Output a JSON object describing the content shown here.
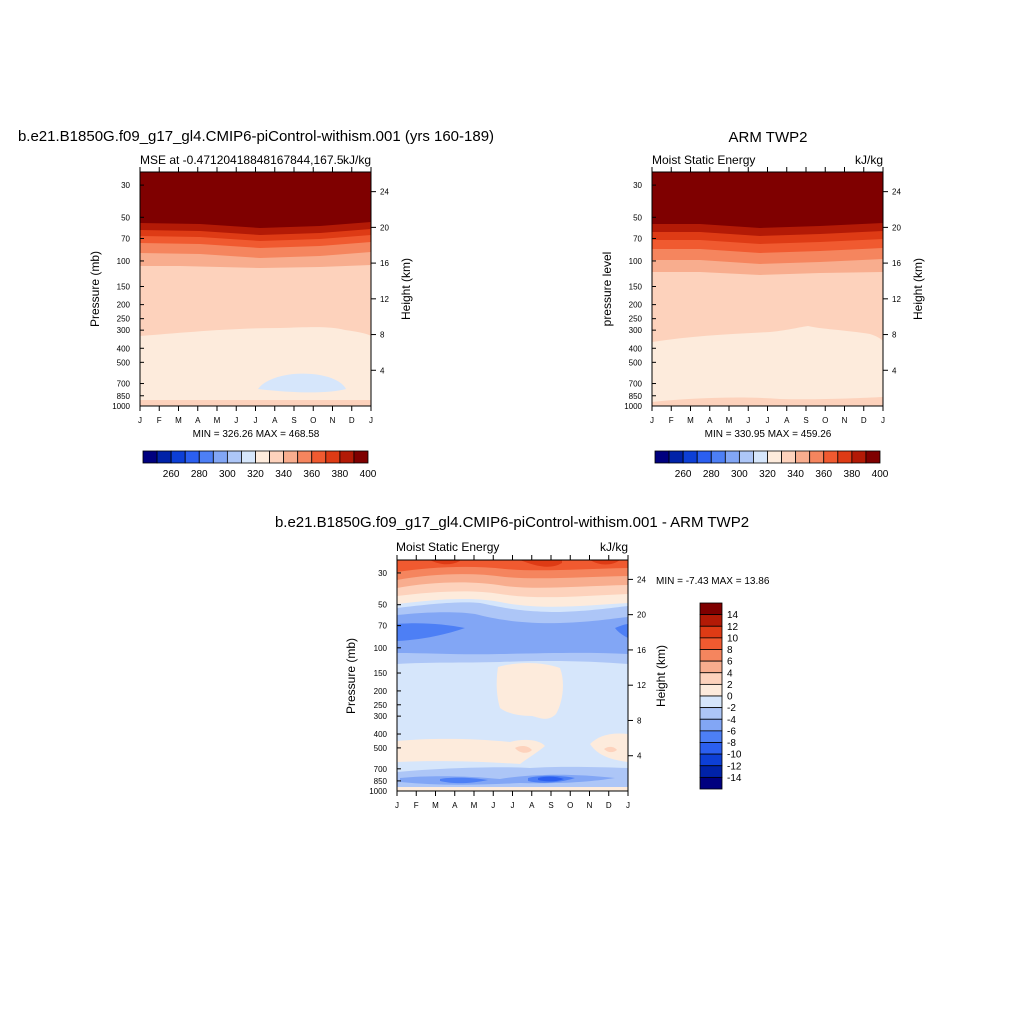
{
  "chart_data": [
    {
      "type": "heatmap",
      "title": "b.e21.B1850G.f09_g17_gl4.CMIP6-piControl-withism.001 (yrs 160-189)",
      "left_label": "MSE at -0.47120418848167844,167.5",
      "right_label": "kJ/kg",
      "ylabel": "Pressure (mb)",
      "ylabel_right": "Height (km)",
      "x_ticks": [
        "J",
        "F",
        "M",
        "A",
        "M",
        "J",
        "J",
        "A",
        "S",
        "O",
        "N",
        "D",
        "J"
      ],
      "y_ticks": [
        30,
        50,
        70,
        100,
        150,
        200,
        250,
        300,
        400,
        500,
        700,
        850,
        1000
      ],
      "y_ticks_right": [
        24,
        20,
        16,
        12,
        8,
        4
      ],
      "stats": "MIN = 326.26 MAX = 468.58",
      "colorbar_levels": [
        250,
        260,
        270,
        280,
        290,
        300,
        310,
        320,
        330,
        340,
        350,
        360,
        370,
        380,
        390,
        400
      ],
      "colorbar_labels": [
        "260",
        "280",
        "300",
        "320",
        "340",
        "360",
        "380",
        "400"
      ]
    },
    {
      "type": "heatmap",
      "title": "ARM TWP2",
      "left_label": "Moist Static Energy",
      "right_label": "kJ/kg",
      "ylabel": "pressure level",
      "ylabel_right": "Height (km)",
      "x_ticks": [
        "J",
        "F",
        "M",
        "A",
        "M",
        "J",
        "J",
        "A",
        "S",
        "O",
        "N",
        "D",
        "J"
      ],
      "y_ticks": [
        30,
        50,
        70,
        100,
        150,
        200,
        250,
        300,
        400,
        500,
        700,
        850,
        1000
      ],
      "y_ticks_right": [
        24,
        20,
        16,
        12,
        8,
        4
      ],
      "stats": "MIN = 330.95 MAX = 459.26",
      "colorbar_levels": [
        250,
        260,
        270,
        280,
        290,
        300,
        310,
        320,
        330,
        340,
        350,
        360,
        370,
        380,
        390,
        400
      ],
      "colorbar_labels": [
        "260",
        "280",
        "300",
        "320",
        "340",
        "360",
        "380",
        "400"
      ]
    },
    {
      "type": "heatmap",
      "title": "b.e21.B1850G.f09_g17_gl4.CMIP6-piControl-withism.001 - ARM TWP2",
      "left_label": "Moist Static Energy",
      "right_label": "kJ/kg",
      "ylabel": "Pressure (mb)",
      "ylabel_right": "Height (km)",
      "x_ticks": [
        "J",
        "F",
        "M",
        "A",
        "M",
        "J",
        "J",
        "A",
        "S",
        "O",
        "N",
        "D",
        "J"
      ],
      "y_ticks": [
        30,
        50,
        70,
        100,
        150,
        200,
        250,
        300,
        400,
        500,
        700,
        850,
        1000
      ],
      "y_ticks_right": [
        24,
        20,
        16,
        12,
        8,
        4
      ],
      "stats": "MIN =  -7.43 MAX =  13.86",
      "colorbar_levels": [
        -14,
        -12,
        -10,
        -8,
        -6,
        -4,
        -2,
        0,
        2,
        4,
        6,
        8,
        10,
        12,
        14
      ],
      "colorbar_labels": [
        "14",
        "12",
        "10",
        "8",
        "6",
        "4",
        "2",
        "0",
        "-2",
        "-4",
        "-6",
        "-8",
        "-10",
        "-12",
        "-14"
      ]
    }
  ],
  "colors": {
    "abs_scale": [
      "#00007f",
      "#0022a8",
      "#0d3fd6",
      "#2b5ff0",
      "#4d7ff5",
      "#82a6f5",
      "#adc6f7",
      "#d6e6fb",
      "#fdebdc",
      "#fdd2bc",
      "#f8ad8e",
      "#f5855e",
      "#f05a30",
      "#de3b15",
      "#b31a06",
      "#7f0000"
    ],
    "diff_scale": [
      "#7f0000",
      "#b31a06",
      "#de3b15",
      "#f05a30",
      "#f5855e",
      "#f8ad8e",
      "#fdd2bc",
      "#fdebdc",
      "#d6e6fb",
      "#adc6f7",
      "#82a6f5",
      "#4d7ff5",
      "#2b5ff0",
      "#0d3fd6",
      "#0022a8",
      "#00007f"
    ]
  }
}
